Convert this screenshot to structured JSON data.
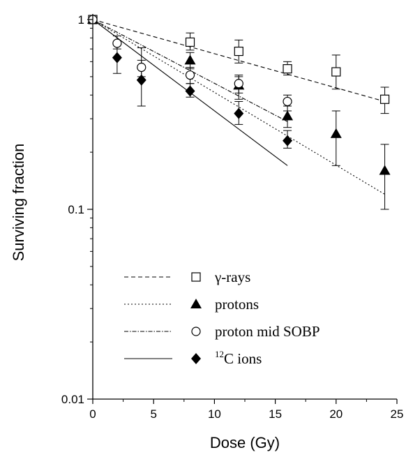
{
  "chart_data": {
    "type": "scatter",
    "xlabel": "Dose (Gy)",
    "ylabel": "Surviving fraction",
    "xlim": [
      0,
      25
    ],
    "ylim": [
      0.01,
      1
    ],
    "yscale": "log",
    "xticks": [
      "0",
      "5",
      "10",
      "15",
      "20",
      "25"
    ],
    "yticks": [
      "0.01",
      "0.1",
      "1"
    ],
    "legend_position": "bottom-left",
    "series": [
      {
        "name": "γ-rays",
        "marker": "open-square",
        "line": "dashed",
        "x": [
          0,
          8,
          12,
          16,
          20,
          24
        ],
        "y": [
          1.0,
          0.76,
          0.68,
          0.55,
          0.53,
          0.38
        ],
        "err_low": [
          1.0,
          0.69,
          0.59,
          0.51,
          0.43,
          0.32
        ],
        "err_high": [
          1.0,
          0.85,
          0.78,
          0.6,
          0.65,
          0.44
        ],
        "fit_x": [
          0,
          24
        ],
        "fit_y": [
          1.0,
          0.37
        ]
      },
      {
        "name": "protons",
        "marker": "filled-triangle",
        "line": "dotted",
        "x": [
          0,
          8,
          12,
          16,
          20,
          24
        ],
        "y": [
          1.0,
          0.61,
          0.45,
          0.31,
          0.25,
          0.16
        ],
        "err_low": [
          1.0,
          0.55,
          0.38,
          0.27,
          0.17,
          0.1
        ],
        "err_high": [
          1.0,
          0.67,
          0.5,
          0.35,
          0.33,
          0.22
        ],
        "fit_x": [
          0,
          24
        ],
        "fit_y": [
          1.0,
          0.12
        ]
      },
      {
        "name": "proton mid SOBP",
        "marker": "open-circle",
        "line": "dash-dot",
        "x": [
          0,
          2,
          4,
          8,
          12,
          16
        ],
        "y": [
          1.0,
          0.75,
          0.56,
          0.51,
          0.46,
          0.37
        ],
        "err_low": [
          1.0,
          0.7,
          0.5,
          0.46,
          0.41,
          0.33
        ],
        "err_high": [
          1.0,
          0.82,
          0.61,
          0.56,
          0.51,
          0.4
        ],
        "fit_x": [
          0,
          16
        ],
        "fit_y": [
          1.0,
          0.29
        ]
      },
      {
        "name": "12C ions",
        "legend_superscript": "12",
        "legend_text": "C ions",
        "marker": "filled-diamond",
        "line": "solid",
        "x": [
          2,
          4,
          8,
          12,
          16
        ],
        "y": [
          0.63,
          0.48,
          0.42,
          0.32,
          0.23
        ],
        "err_low": [
          0.52,
          0.35,
          0.39,
          0.28,
          0.21
        ],
        "err_high": [
          0.74,
          0.71,
          0.46,
          0.37,
          0.26
        ],
        "fit_x": [
          0,
          16
        ],
        "fit_y": [
          1.0,
          0.17
        ]
      }
    ]
  }
}
